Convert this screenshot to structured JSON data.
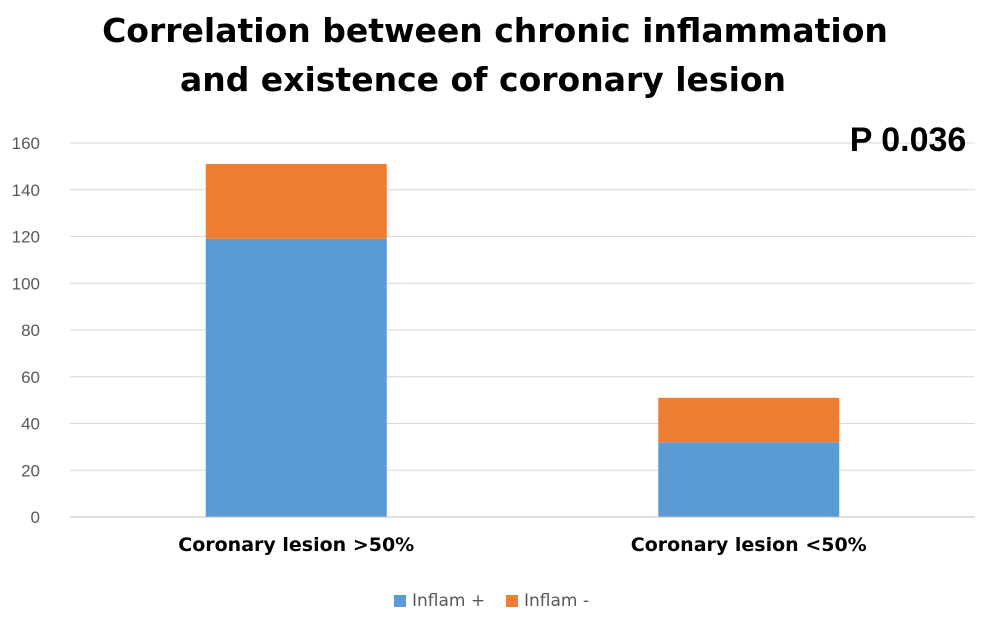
{
  "chart_data": {
    "type": "bar",
    "stacked": true,
    "title": [
      "Correlation between chronic inflammation",
      "and existence of coronary lesion"
    ],
    "annotation": "P 0.036",
    "categories": [
      "Coronary lesion >50%",
      "Coronary lesion <50%"
    ],
    "series": [
      {
        "name": "Inflam +",
        "values": [
          119,
          32
        ],
        "color": "#5b9bd5"
      },
      {
        "name": "Inflam -",
        "values": [
          32,
          19
        ],
        "color": "#ed7d31"
      }
    ],
    "yticks": [
      0,
      20,
      40,
      60,
      80,
      100,
      120,
      140,
      160
    ],
    "ylim": [
      0,
      160
    ],
    "xlabel": "",
    "ylabel": "",
    "grid": true,
    "legend": "bottom-center"
  }
}
